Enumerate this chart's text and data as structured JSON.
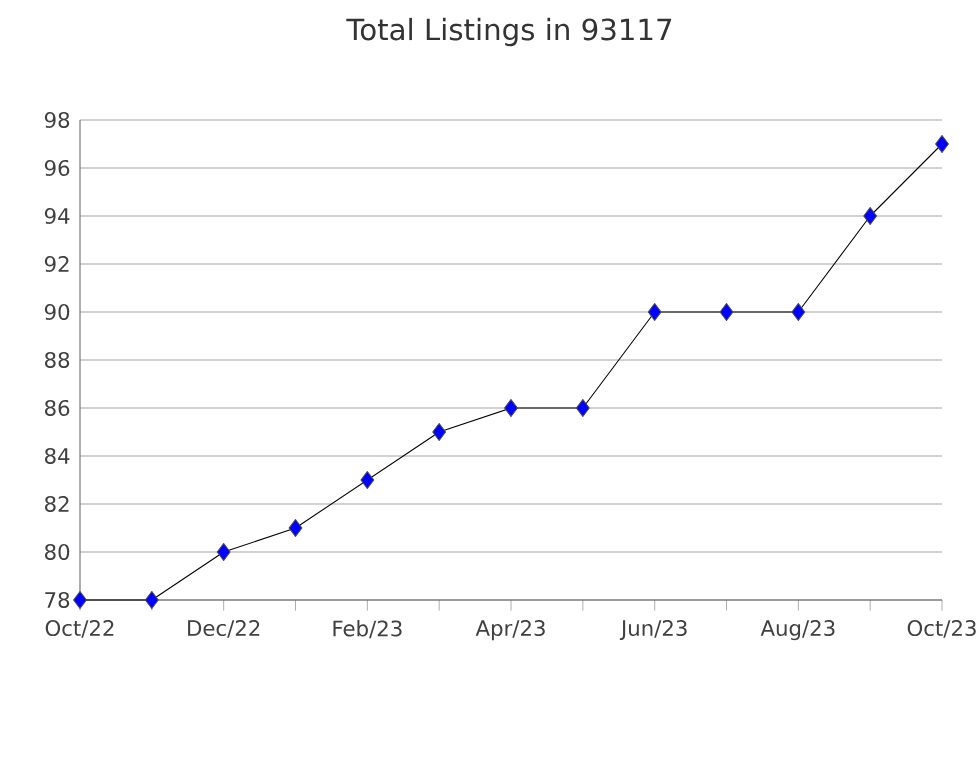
{
  "chart_data": {
    "type": "line",
    "title": "Total Listings in 93117",
    "categories": [
      "Oct/22",
      null,
      "Dec/22",
      null,
      "Feb/23",
      null,
      "Apr/23",
      null,
      "Jun/23",
      null,
      "Aug/23",
      null,
      "Oct/23"
    ],
    "series": [
      {
        "color": "#0000ff",
        "values": [
          78,
          78,
          80,
          81,
          83,
          85,
          86,
          86,
          90,
          90,
          90,
          94,
          97
        ]
      }
    ],
    "ylim": [
      78,
      98
    ],
    "yticks": [
      78,
      80,
      82,
      84,
      86,
      88,
      90,
      92,
      94,
      96,
      98
    ],
    "grid": "y",
    "marker": "diamond",
    "line_style": "solid"
  }
}
